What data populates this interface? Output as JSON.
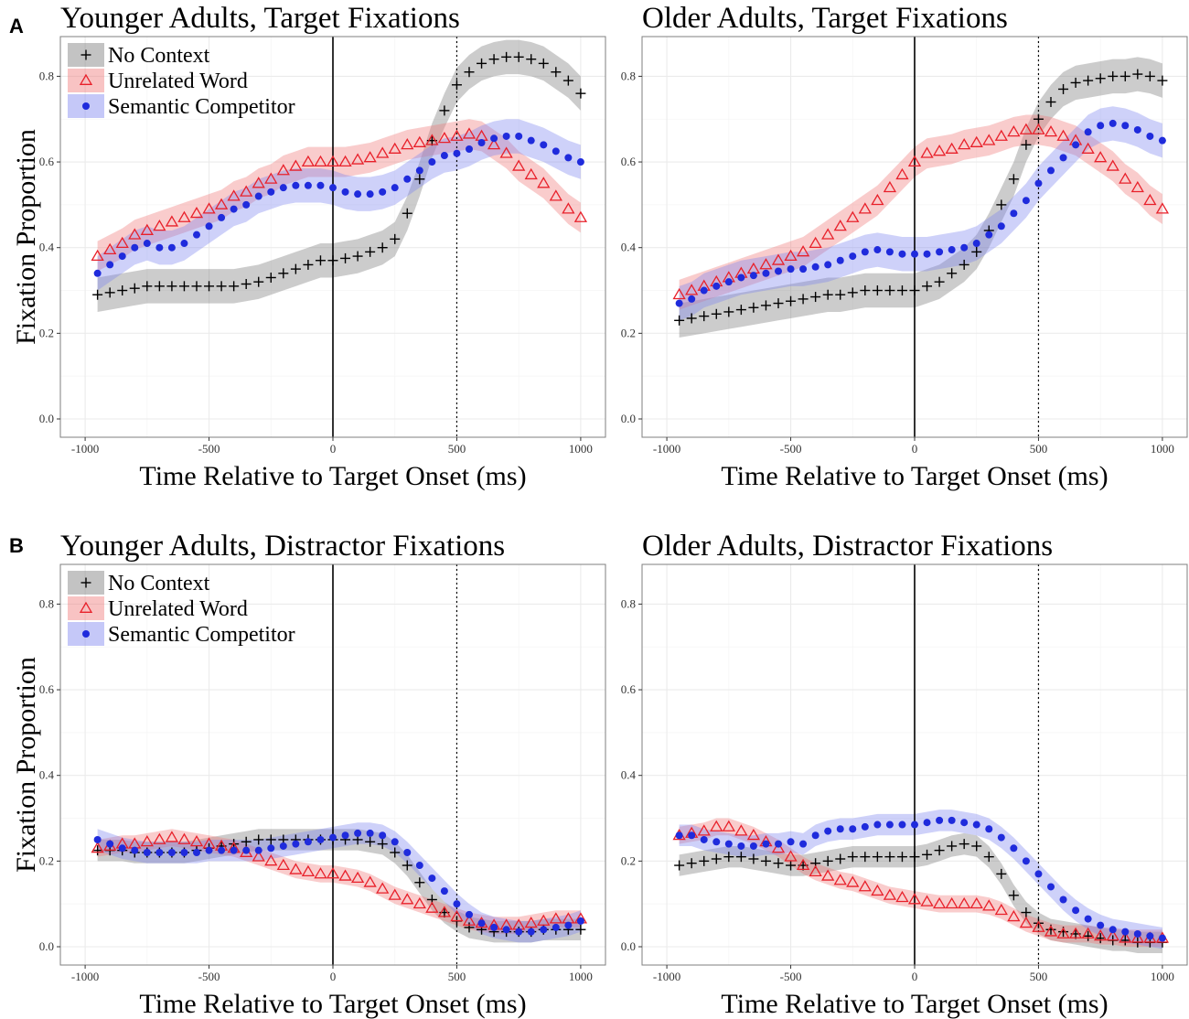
{
  "panel_letters": [
    "A",
    "B"
  ],
  "legend_entries": [
    "No Context",
    "Unrelated Word",
    "Semantic Competitor"
  ],
  "colors": {
    "no_context": "#000000",
    "unrelated_word": "#e8202a",
    "semantic_competitor": "#1f2bdc",
    "no_context_ribbon": "#7a7a7a",
    "unrelated_word_ribbon": "#f07a7a",
    "semantic_competitor_ribbon": "#7f86ef"
  },
  "chart_data": [
    {
      "type": "scatter",
      "title": "Younger Adults, Target Fixations",
      "xlabel": "Time Relative to Target Onset (ms)",
      "ylabel": "Fixation Proportion",
      "xlim": [
        -1000,
        1000
      ],
      "ylim": [
        0,
        0.85
      ],
      "xticks": [
        -1000,
        -500,
        0,
        500,
        1000
      ],
      "yticks": [
        0.0,
        0.2,
        0.4,
        0.6,
        0.8
      ],
      "vlines": [
        {
          "x": 0,
          "style": "solid"
        },
        {
          "x": 500,
          "style": "dotted"
        }
      ],
      "legend": "top-left",
      "x": [
        -950,
        -900,
        -850,
        -800,
        -750,
        -700,
        -650,
        -600,
        -550,
        -500,
        -450,
        -400,
        -350,
        -300,
        -250,
        -200,
        -150,
        -100,
        -50,
        0,
        50,
        100,
        150,
        200,
        250,
        300,
        350,
        400,
        450,
        500,
        550,
        600,
        650,
        700,
        750,
        800,
        850,
        900,
        950,
        1000
      ],
      "series": [
        {
          "name": "No Context",
          "ribbon_halfwidth": 0.04,
          "values": [
            0.29,
            0.295,
            0.3,
            0.305,
            0.31,
            0.31,
            0.31,
            0.31,
            0.31,
            0.31,
            0.31,
            0.31,
            0.315,
            0.32,
            0.33,
            0.34,
            0.35,
            0.36,
            0.37,
            0.37,
            0.375,
            0.38,
            0.39,
            0.4,
            0.42,
            0.48,
            0.56,
            0.65,
            0.72,
            0.78,
            0.81,
            0.83,
            0.84,
            0.845,
            0.845,
            0.84,
            0.83,
            0.81,
            0.79,
            0.76
          ]
        },
        {
          "name": "Unrelated Word",
          "ribbon_halfwidth": 0.035,
          "values": [
            0.38,
            0.395,
            0.41,
            0.43,
            0.44,
            0.45,
            0.46,
            0.47,
            0.48,
            0.49,
            0.5,
            0.52,
            0.53,
            0.55,
            0.56,
            0.58,
            0.59,
            0.6,
            0.6,
            0.6,
            0.6,
            0.605,
            0.61,
            0.62,
            0.63,
            0.64,
            0.645,
            0.65,
            0.655,
            0.66,
            0.665,
            0.66,
            0.64,
            0.62,
            0.59,
            0.57,
            0.55,
            0.52,
            0.49,
            0.47
          ]
        },
        {
          "name": "Semantic Competitor",
          "ribbon_halfwidth": 0.04,
          "values": [
            0.34,
            0.36,
            0.38,
            0.4,
            0.41,
            0.4,
            0.4,
            0.41,
            0.43,
            0.45,
            0.47,
            0.49,
            0.5,
            0.52,
            0.53,
            0.54,
            0.545,
            0.545,
            0.545,
            0.54,
            0.53,
            0.525,
            0.525,
            0.53,
            0.54,
            0.56,
            0.58,
            0.6,
            0.615,
            0.62,
            0.63,
            0.645,
            0.655,
            0.66,
            0.66,
            0.65,
            0.64,
            0.625,
            0.61,
            0.6
          ]
        }
      ]
    },
    {
      "type": "scatter",
      "title": "Older Adults, Target Fixations",
      "xlabel": "Time Relative to Target Onset (ms)",
      "ylabel": "",
      "xlim": [
        -1000,
        1000
      ],
      "ylim": [
        0,
        0.85
      ],
      "xticks": [
        -1000,
        -500,
        0,
        500,
        1000
      ],
      "yticks": [
        0.0,
        0.2,
        0.4,
        0.6,
        0.8
      ],
      "vlines": [
        {
          "x": 0,
          "style": "solid"
        },
        {
          "x": 500,
          "style": "dotted"
        }
      ],
      "x": [
        -950,
        -900,
        -850,
        -800,
        -750,
        -700,
        -650,
        -600,
        -550,
        -500,
        -450,
        -400,
        -350,
        -300,
        -250,
        -200,
        -150,
        -100,
        -50,
        0,
        50,
        100,
        150,
        200,
        250,
        300,
        350,
        400,
        450,
        500,
        550,
        600,
        650,
        700,
        750,
        800,
        850,
        900,
        950,
        1000
      ],
      "series": [
        {
          "name": "No Context",
          "ribbon_halfwidth": 0.04,
          "values": [
            0.23,
            0.235,
            0.24,
            0.245,
            0.25,
            0.255,
            0.26,
            0.265,
            0.27,
            0.275,
            0.28,
            0.285,
            0.29,
            0.29,
            0.295,
            0.3,
            0.3,
            0.3,
            0.3,
            0.3,
            0.31,
            0.32,
            0.34,
            0.36,
            0.39,
            0.44,
            0.5,
            0.56,
            0.64,
            0.7,
            0.74,
            0.77,
            0.785,
            0.79,
            0.795,
            0.8,
            0.8,
            0.805,
            0.8,
            0.79
          ]
        },
        {
          "name": "Unrelated Word",
          "ribbon_halfwidth": 0.035,
          "values": [
            0.29,
            0.3,
            0.31,
            0.32,
            0.33,
            0.34,
            0.35,
            0.36,
            0.37,
            0.38,
            0.39,
            0.41,
            0.43,
            0.45,
            0.47,
            0.49,
            0.51,
            0.54,
            0.57,
            0.6,
            0.62,
            0.625,
            0.63,
            0.64,
            0.645,
            0.65,
            0.66,
            0.67,
            0.675,
            0.675,
            0.67,
            0.66,
            0.65,
            0.63,
            0.61,
            0.59,
            0.56,
            0.54,
            0.51,
            0.49
          ]
        },
        {
          "name": "Semantic Competitor",
          "ribbon_halfwidth": 0.04,
          "values": [
            0.27,
            0.28,
            0.3,
            0.31,
            0.32,
            0.33,
            0.335,
            0.34,
            0.345,
            0.35,
            0.35,
            0.355,
            0.36,
            0.37,
            0.38,
            0.39,
            0.395,
            0.39,
            0.385,
            0.385,
            0.385,
            0.39,
            0.395,
            0.4,
            0.41,
            0.43,
            0.45,
            0.48,
            0.51,
            0.55,
            0.58,
            0.61,
            0.64,
            0.67,
            0.685,
            0.69,
            0.685,
            0.675,
            0.66,
            0.65
          ]
        }
      ]
    },
    {
      "type": "scatter",
      "title": "Younger Adults, Distractor Fixations",
      "xlabel": "Time Relative to Target Onset (ms)",
      "ylabel": "Fixation Proportion",
      "xlim": [
        -1000,
        1000
      ],
      "ylim": [
        0,
        0.85
      ],
      "xticks": [
        -1000,
        -500,
        0,
        500,
        1000
      ],
      "yticks": [
        0.0,
        0.2,
        0.4,
        0.6,
        0.8
      ],
      "vlines": [
        {
          "x": 0,
          "style": "solid"
        },
        {
          "x": 500,
          "style": "dotted"
        }
      ],
      "legend": "top-left",
      "x": [
        -950,
        -900,
        -850,
        -800,
        -750,
        -700,
        -650,
        -600,
        -550,
        -500,
        -450,
        -400,
        -350,
        -300,
        -250,
        -200,
        -150,
        -100,
        -50,
        0,
        50,
        100,
        150,
        200,
        250,
        300,
        350,
        400,
        450,
        500,
        550,
        600,
        650,
        700,
        750,
        800,
        850,
        900,
        950,
        1000
      ],
      "series": [
        {
          "name": "No Context",
          "ribbon_halfwidth": 0.025,
          "values": [
            0.225,
            0.225,
            0.225,
            0.22,
            0.22,
            0.22,
            0.22,
            0.22,
            0.225,
            0.23,
            0.235,
            0.24,
            0.245,
            0.25,
            0.25,
            0.25,
            0.25,
            0.25,
            0.25,
            0.25,
            0.25,
            0.25,
            0.245,
            0.24,
            0.22,
            0.19,
            0.15,
            0.11,
            0.08,
            0.06,
            0.045,
            0.04,
            0.035,
            0.035,
            0.035,
            0.035,
            0.04,
            0.04,
            0.04,
            0.04
          ]
        },
        {
          "name": "Unrelated Word",
          "ribbon_halfwidth": 0.02,
          "values": [
            0.23,
            0.235,
            0.24,
            0.24,
            0.245,
            0.25,
            0.255,
            0.25,
            0.245,
            0.24,
            0.235,
            0.23,
            0.22,
            0.21,
            0.2,
            0.19,
            0.18,
            0.175,
            0.17,
            0.17,
            0.165,
            0.16,
            0.15,
            0.135,
            0.12,
            0.11,
            0.1,
            0.09,
            0.08,
            0.07,
            0.06,
            0.055,
            0.05,
            0.05,
            0.05,
            0.055,
            0.06,
            0.065,
            0.065,
            0.065
          ]
        },
        {
          "name": "Semantic Competitor",
          "ribbon_halfwidth": 0.025,
          "values": [
            0.25,
            0.24,
            0.23,
            0.225,
            0.22,
            0.22,
            0.22,
            0.22,
            0.22,
            0.225,
            0.225,
            0.225,
            0.225,
            0.225,
            0.23,
            0.235,
            0.24,
            0.245,
            0.25,
            0.255,
            0.26,
            0.265,
            0.265,
            0.26,
            0.245,
            0.22,
            0.19,
            0.16,
            0.13,
            0.1,
            0.075,
            0.055,
            0.045,
            0.04,
            0.035,
            0.035,
            0.04,
            0.045,
            0.05,
            0.06
          ]
        }
      ]
    },
    {
      "type": "scatter",
      "title": "Older Adults, Distractor Fixations",
      "xlabel": "Time Relative to Target Onset (ms)",
      "ylabel": "",
      "xlim": [
        -1000,
        1000
      ],
      "ylim": [
        0,
        0.85
      ],
      "xticks": [
        -1000,
        -500,
        0,
        500,
        1000
      ],
      "yticks": [
        0.0,
        0.2,
        0.4,
        0.6,
        0.8
      ],
      "vlines": [
        {
          "x": 0,
          "style": "solid"
        },
        {
          "x": 500,
          "style": "dotted"
        }
      ],
      "x": [
        -950,
        -900,
        -850,
        -800,
        -750,
        -700,
        -650,
        -600,
        -550,
        -500,
        -450,
        -400,
        -350,
        -300,
        -250,
        -200,
        -150,
        -100,
        -50,
        0,
        50,
        100,
        150,
        200,
        250,
        300,
        350,
        400,
        450,
        500,
        550,
        600,
        650,
        700,
        750,
        800,
        850,
        900,
        950,
        1000
      ],
      "series": [
        {
          "name": "No Context",
          "ribbon_halfwidth": 0.025,
          "values": [
            0.19,
            0.195,
            0.2,
            0.205,
            0.21,
            0.21,
            0.205,
            0.2,
            0.195,
            0.19,
            0.19,
            0.195,
            0.2,
            0.205,
            0.21,
            0.21,
            0.21,
            0.21,
            0.21,
            0.21,
            0.215,
            0.225,
            0.235,
            0.24,
            0.235,
            0.21,
            0.17,
            0.12,
            0.08,
            0.055,
            0.04,
            0.035,
            0.03,
            0.025,
            0.02,
            0.015,
            0.015,
            0.01,
            0.01,
            0.01
          ]
        },
        {
          "name": "Unrelated Word",
          "ribbon_halfwidth": 0.02,
          "values": [
            0.26,
            0.265,
            0.27,
            0.28,
            0.28,
            0.27,
            0.26,
            0.245,
            0.23,
            0.21,
            0.19,
            0.175,
            0.165,
            0.155,
            0.15,
            0.14,
            0.13,
            0.12,
            0.115,
            0.11,
            0.105,
            0.1,
            0.1,
            0.1,
            0.1,
            0.095,
            0.085,
            0.07,
            0.055,
            0.045,
            0.035,
            0.03,
            0.03,
            0.03,
            0.025,
            0.025,
            0.02,
            0.02,
            0.02,
            0.02
          ]
        },
        {
          "name": "Semantic Competitor",
          "ribbon_halfwidth": 0.025,
          "values": [
            0.26,
            0.26,
            0.25,
            0.245,
            0.24,
            0.235,
            0.235,
            0.24,
            0.24,
            0.245,
            0.24,
            0.26,
            0.27,
            0.275,
            0.275,
            0.28,
            0.285,
            0.285,
            0.285,
            0.285,
            0.29,
            0.295,
            0.295,
            0.29,
            0.285,
            0.275,
            0.255,
            0.23,
            0.2,
            0.17,
            0.14,
            0.11,
            0.085,
            0.065,
            0.05,
            0.04,
            0.035,
            0.03,
            0.025,
            0.02
          ]
        }
      ]
    }
  ]
}
